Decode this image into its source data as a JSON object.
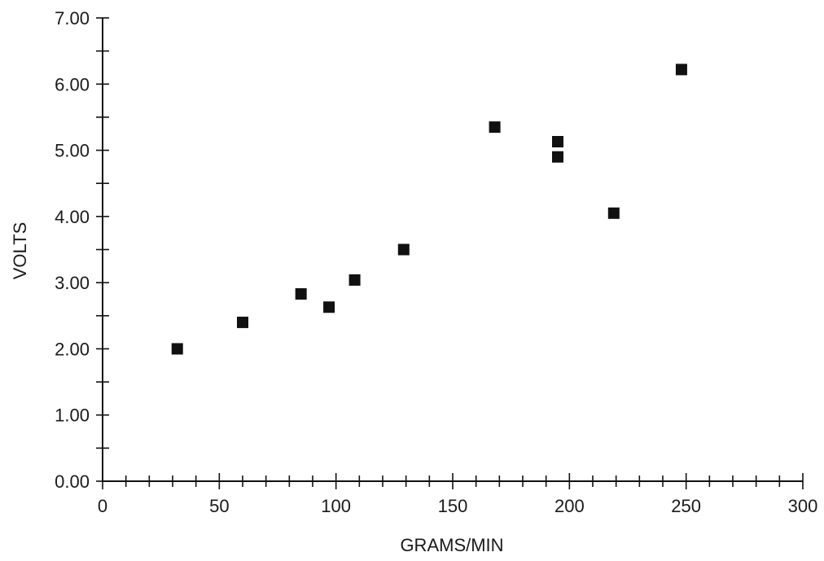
{
  "chart_data": {
    "type": "scatter",
    "title": "",
    "xlabel": "GRAMS/MIN",
    "ylabel": "VOLTS",
    "xlim": [
      0,
      300
    ],
    "ylim": [
      0,
      7
    ],
    "x_major_ticks": [
      0,
      50,
      100,
      150,
      200,
      250,
      300
    ],
    "x_minor_step": 10,
    "y_major_ticks": [
      0,
      1,
      2,
      3,
      4,
      5,
      6,
      7
    ],
    "y_minor_step": 0.5,
    "x_tick_labels": [
      "0",
      "50",
      "100",
      "150",
      "200",
      "250",
      "300"
    ],
    "y_tick_labels": [
      "0.00",
      "1.00",
      "2.00",
      "3.00",
      "4.00",
      "5.00",
      "6.00",
      "7.00"
    ],
    "grid": false,
    "marker": "square",
    "marker_color": "#111111",
    "series": [
      {
        "points": [
          {
            "x": 32,
            "y": 2.0
          },
          {
            "x": 60,
            "y": 2.4
          },
          {
            "x": 85,
            "y": 2.83
          },
          {
            "x": 97,
            "y": 2.63
          },
          {
            "x": 108,
            "y": 3.04
          },
          {
            "x": 129,
            "y": 3.5
          },
          {
            "x": 168,
            "y": 5.35
          },
          {
            "x": 195,
            "y": 5.13
          },
          {
            "x": 195,
            "y": 4.9
          },
          {
            "x": 219,
            "y": 4.05
          },
          {
            "x": 248,
            "y": 6.22
          }
        ]
      }
    ]
  }
}
